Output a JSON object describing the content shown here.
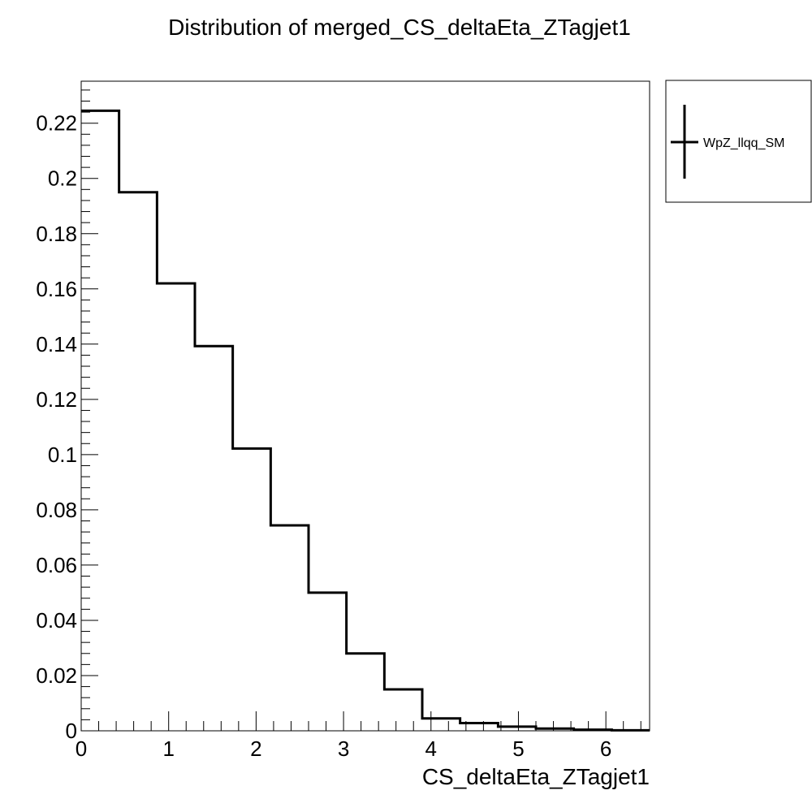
{
  "chart_data": {
    "type": "step-histogram",
    "title": "Distribution of merged_CS_deltaEta_ZTagjet1",
    "xlabel": "CS_deltaEta_ZTagjet1",
    "ylabel": "",
    "xlim": [
      0,
      6.5
    ],
    "ylim": [
      0,
      0.2352
    ],
    "grid": false,
    "legend_position": "top-right-outside",
    "bin_edges": [
      0,
      0.433,
      0.867,
      1.3,
      1.733,
      2.167,
      2.6,
      3.033,
      3.467,
      3.9,
      4.333,
      4.767,
      5.2,
      5.633,
      6.067,
      6.5
    ],
    "series": [
      {
        "name": "WpZ_llqq_SM",
        "color": "#000000",
        "values": [
          0.2245,
          0.195,
          0.162,
          0.1393,
          0.1022,
          0.0744,
          0.05,
          0.028,
          0.015,
          0.0045,
          0.0028,
          0.0015,
          0.0008,
          0.0004,
          0.0002
        ]
      }
    ],
    "x_ticks": [
      0,
      1,
      2,
      3,
      4,
      5,
      6
    ],
    "x_tick_labels": [
      "0",
      "1",
      "2",
      "3",
      "4",
      "5",
      "6"
    ],
    "y_ticks": [
      0,
      0.02,
      0.04,
      0.06,
      0.08,
      0.1,
      0.12,
      0.14,
      0.16,
      0.18,
      0.2,
      0.22
    ],
    "y_tick_labels": [
      "0",
      "0.02",
      "0.04",
      "0.06",
      "0.08",
      "0.1",
      "0.12",
      "0.14",
      "0.16",
      "0.18",
      "0.2",
      "0.22"
    ]
  }
}
